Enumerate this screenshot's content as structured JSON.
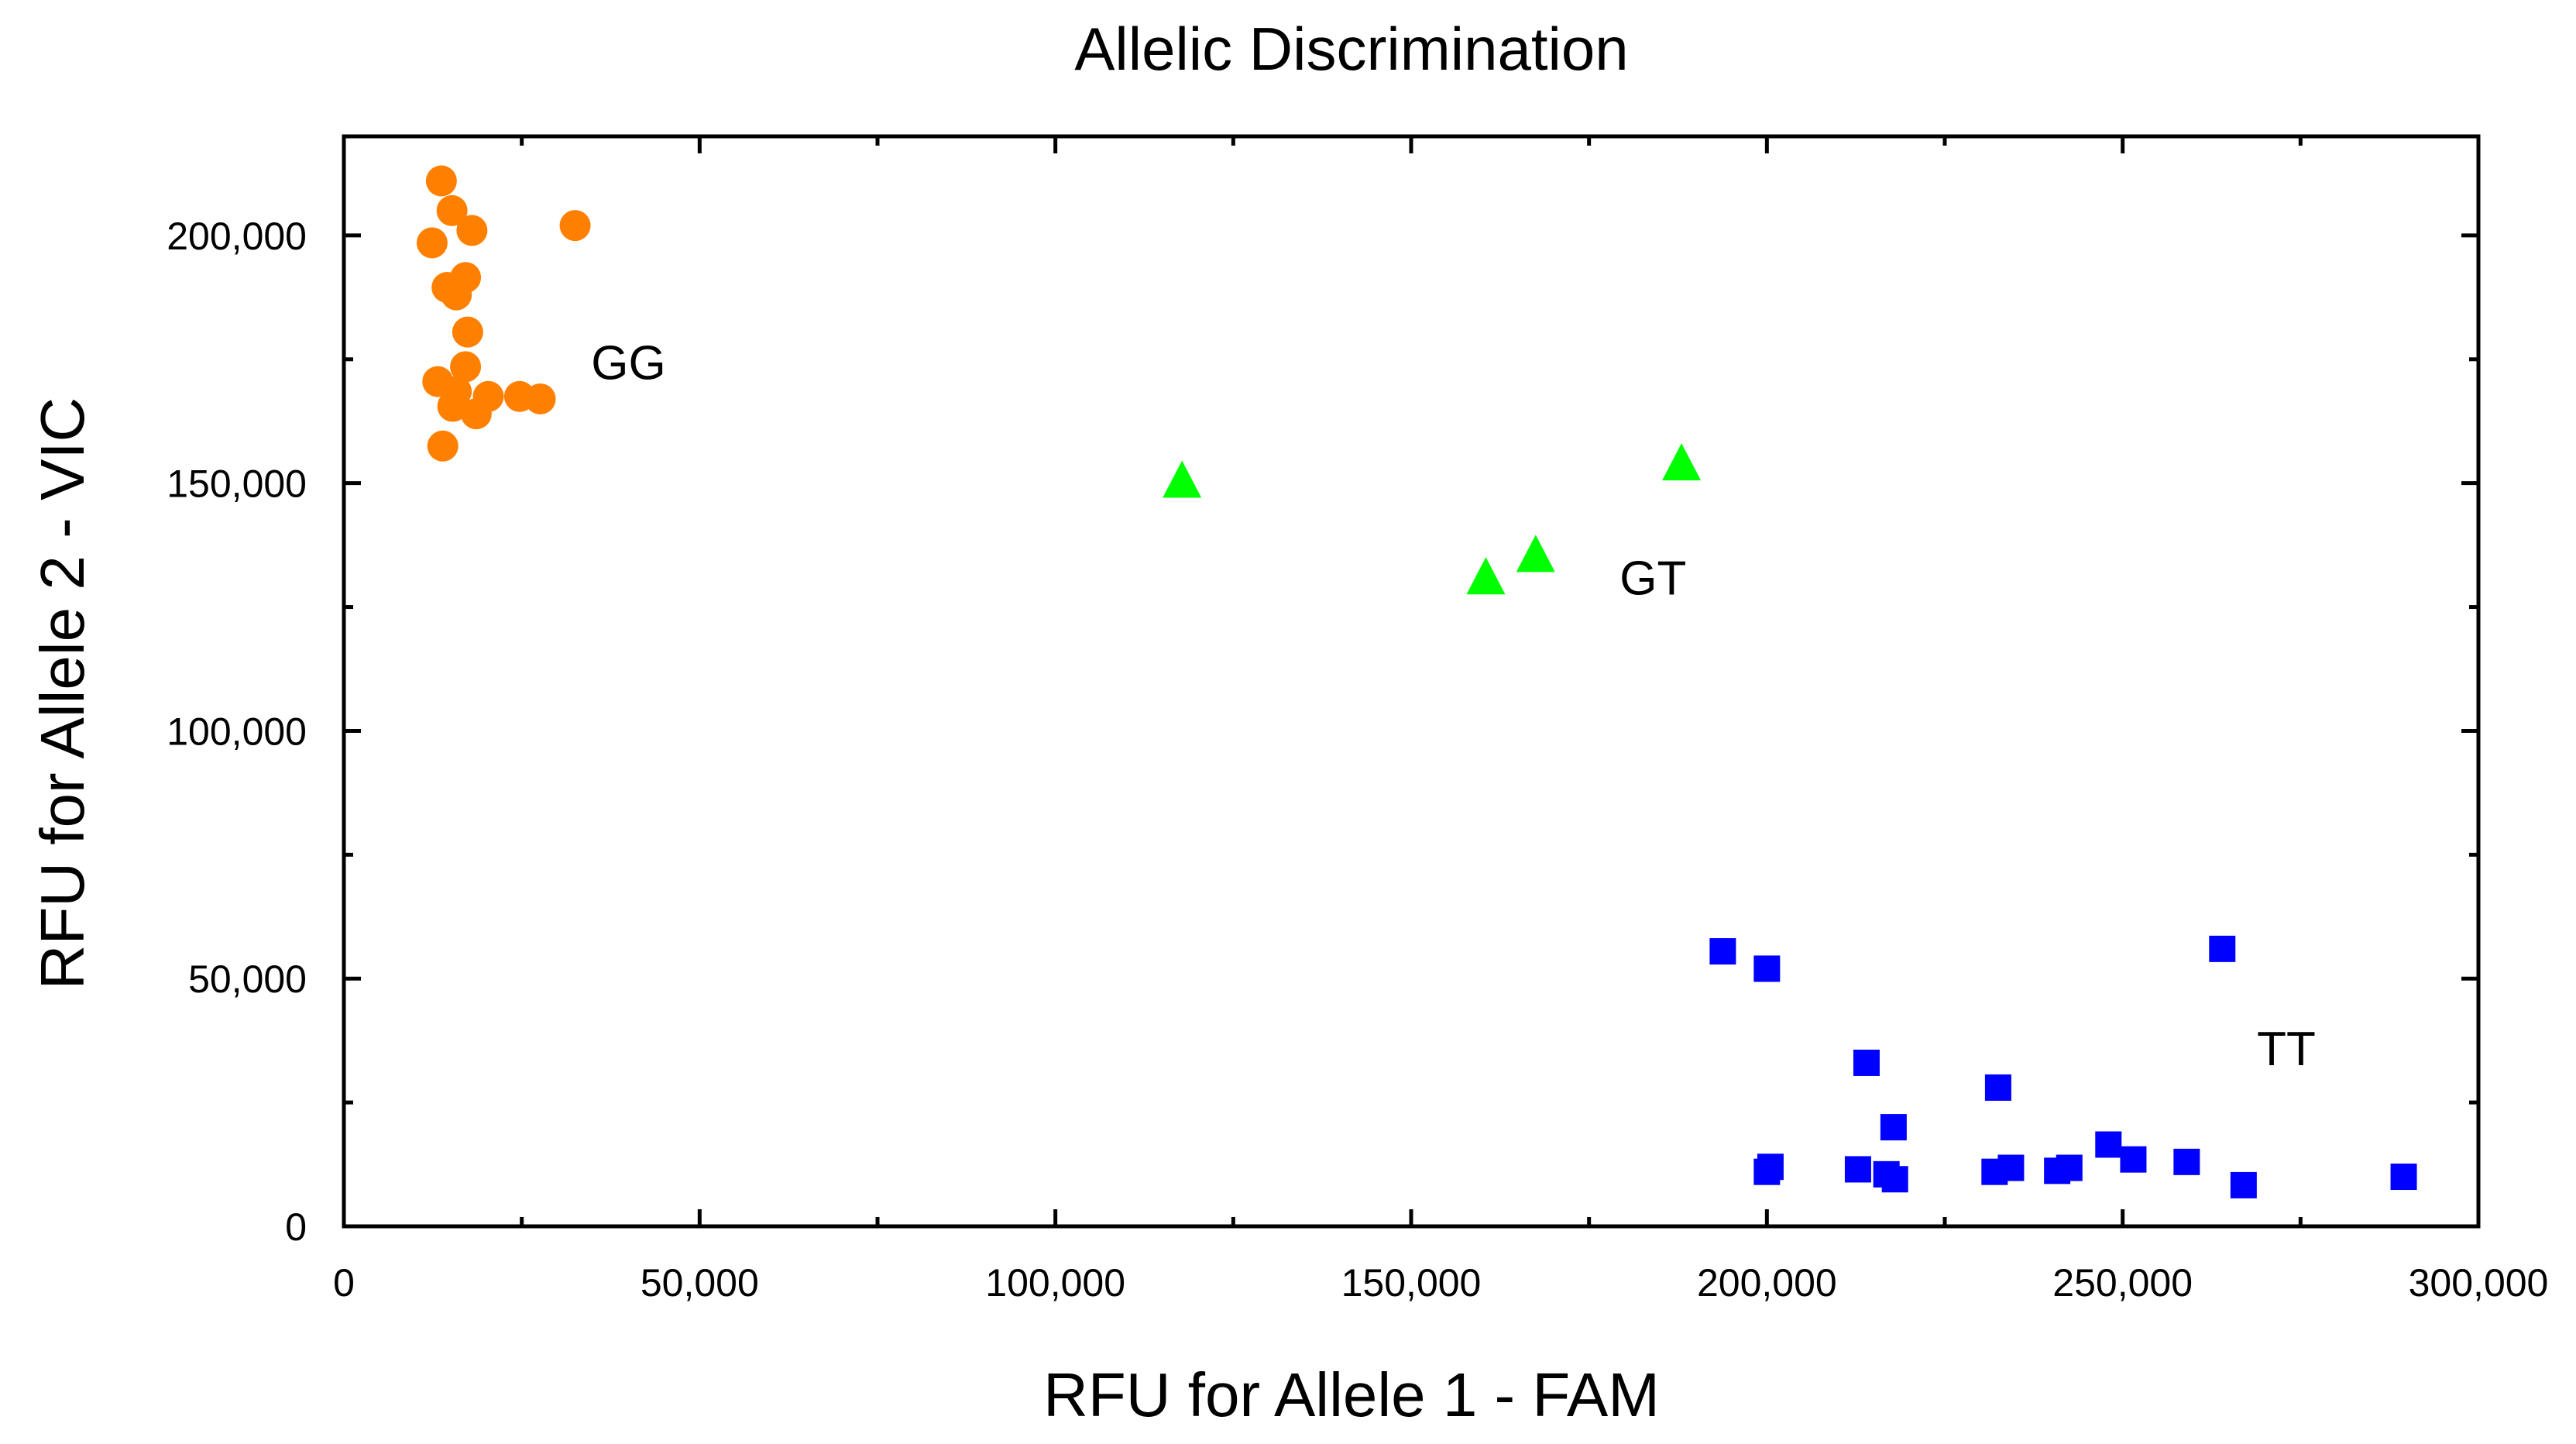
{
  "chart_data": {
    "type": "scatter",
    "title": "Allelic Discrimination",
    "xlabel": "RFU for Allele 1 - FAM",
    "ylabel": "RFU for Allele 2 - VIC",
    "xlim": [
      0,
      300000
    ],
    "ylim": [
      0,
      220000
    ],
    "xticks": [
      0,
      50000,
      100000,
      150000,
      200000,
      250000,
      300000
    ],
    "xtick_labels": [
      "0",
      "50,000",
      "100,000",
      "150,000",
      "200,000",
      "250,000",
      "300,000"
    ],
    "yticks": [
      0,
      50000,
      100000,
      150000,
      200000
    ],
    "ytick_labels": [
      "0",
      "50,000",
      "100,000",
      "150,000",
      "200,000"
    ],
    "grid": false,
    "series": [
      {
        "name": "GG",
        "marker": "circle",
        "color": "#FF8000",
        "points": [
          [
            13700,
            211000
          ],
          [
            15200,
            205000
          ],
          [
            18000,
            201000
          ],
          [
            32500,
            202000
          ],
          [
            12400,
            198500
          ],
          [
            17100,
            191500
          ],
          [
            14500,
            189500
          ],
          [
            15800,
            188000
          ],
          [
            17400,
            180500
          ],
          [
            17100,
            173500
          ],
          [
            13200,
            170500
          ],
          [
            15800,
            168500
          ],
          [
            24700,
            167500
          ],
          [
            27600,
            167000
          ],
          [
            20300,
            167500
          ],
          [
            15300,
            165500
          ],
          [
            18600,
            164000
          ],
          [
            13900,
            157500
          ]
        ]
      },
      {
        "name": "GT",
        "marker": "triangle",
        "color": "#00FF00",
        "points": [
          [
            117800,
            150500
          ],
          [
            188000,
            154000
          ],
          [
            167500,
            135500
          ],
          [
            160500,
            131000
          ]
        ]
      },
      {
        "name": "TT",
        "marker": "square",
        "color": "#0000FF",
        "points": [
          [
            193800,
            55500
          ],
          [
            200000,
            52000
          ],
          [
            264000,
            56000
          ],
          [
            214000,
            33000
          ],
          [
            232500,
            28000
          ],
          [
            217800,
            20000
          ],
          [
            248000,
            16500
          ],
          [
            251500,
            13500
          ],
          [
            259000,
            13000
          ],
          [
            200500,
            12000
          ],
          [
            200000,
            11000
          ],
          [
            212800,
            11500
          ],
          [
            216800,
            10500
          ],
          [
            218000,
            9500
          ],
          [
            232000,
            11000
          ],
          [
            234300,
            11800
          ],
          [
            240800,
            11200
          ],
          [
            242500,
            11800
          ],
          [
            267000,
            8300
          ],
          [
            289500,
            10000
          ]
        ]
      }
    ],
    "annotations": [
      {
        "text": "GG",
        "x": 40000,
        "y": 171000
      },
      {
        "text": "GT",
        "x": 184000,
        "y": 127500
      },
      {
        "text": "TT",
        "x": 273000,
        "y": 32500
      }
    ]
  }
}
